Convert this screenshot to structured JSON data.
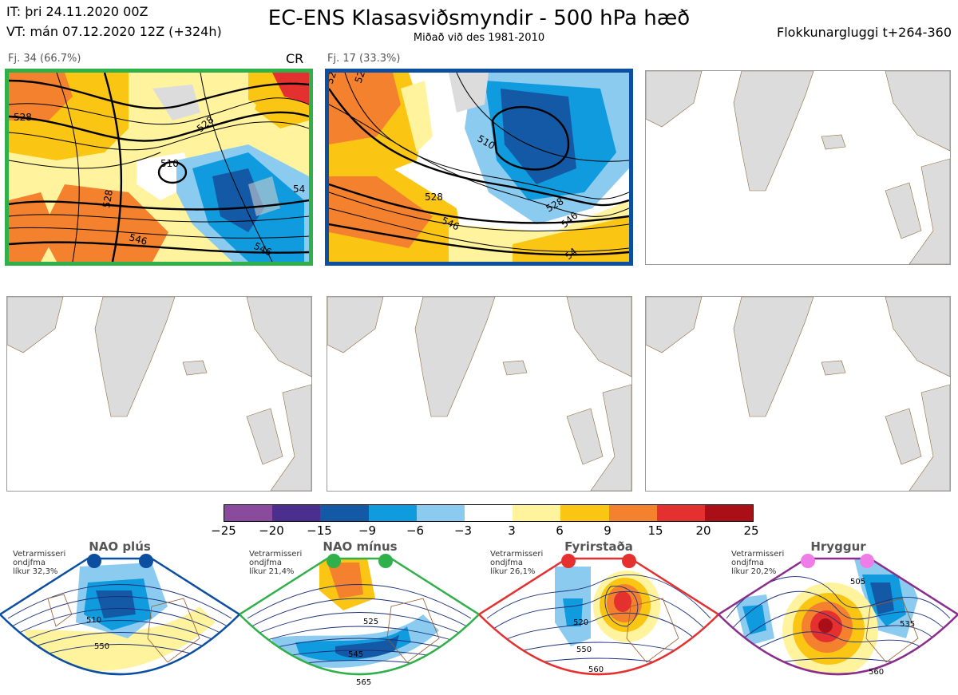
{
  "header": {
    "it_line": "IT: þri 24.11.2020 00Z",
    "vt_line": "VT: mán 07.12.2020 12Z  (+324h)",
    "title": "EC-ENS Klasasviðsmyndir - 500 hPa hæð",
    "subtitle": "Miðað við des 1981-2010",
    "cluster_window": "Flokkunargluggi t+264-360"
  },
  "panels": [
    {
      "label": "Fj. 34 (66.7%)",
      "tag": "CR",
      "border_color": "#2fb04a",
      "contours": [
        "510",
        "528",
        "528",
        "528",
        "546",
        "546",
        "54"
      ]
    },
    {
      "label": "Fj. 17 (33.3%)",
      "tag": "",
      "border_color": "#0c4fa0",
      "contours": [
        "528",
        "510",
        "528",
        "546",
        "528",
        "546",
        "54",
        "528"
      ]
    }
  ],
  "colorbar": {
    "ticks": [
      "−25",
      "−20",
      "−15",
      "−9",
      "−6",
      "−3",
      "3",
      "6",
      "9",
      "15",
      "20",
      "25"
    ],
    "colors": [
      "#8b4b9c",
      "#4a2f8f",
      "#1459a5",
      "#0f9bdd",
      "#8ccbf0",
      "#ffffff",
      "#fff39d",
      "#fbc613",
      "#f3812d",
      "#e4302f",
      "#aa0f17"
    ]
  },
  "regimes": [
    {
      "title": "NAO plús",
      "note": [
        "Vetrarmisseri",
        "ondjfma",
        "líkur 32,3%"
      ],
      "color": "#0c4fa0",
      "dot_color": "#0c4fa0",
      "contours": [
        "510",
        "550"
      ]
    },
    {
      "title": "NAO mínus",
      "note": [
        "Vetrarmisseri",
        "ondjfma",
        "líkur 21,4%"
      ],
      "color": "#2fb04a",
      "dot_color": "#2fb04a",
      "contours": [
        "525",
        "545",
        "565"
      ]
    },
    {
      "title": "Fyrirstaða",
      "note": [
        "Vetrarmisseri",
        "ondjfma",
        "líkur 26,1%"
      ],
      "color": "#e4302f",
      "dot_color": "#e4302f",
      "contours": [
        "520",
        "550",
        "560"
      ]
    },
    {
      "title": "Hryggur",
      "note": [
        "Vetrarmisseri",
        "ondjfma",
        "líkur 20,2%"
      ],
      "color": "#8b2d8b",
      "dot_color": "#ee7de8",
      "contours": [
        "505",
        "535",
        "560"
      ]
    }
  ],
  "icons": {
    "regime_markers": "filled-circle-marker",
    "empty_maps": "map-outline"
  }
}
